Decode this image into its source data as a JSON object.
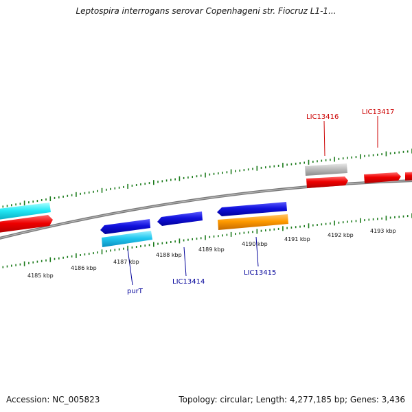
{
  "title": "Leptospira interrogans serovar Copenhageni str. Fiocruz L1-1...",
  "footer": {
    "accession": "Accession: NC_005823",
    "topology": "Topology: circular; Length: 4,277,185 bp; Genes: 3,436"
  },
  "kbp_labels": [
    "4185 kbp",
    "4186 kbp",
    "4187 kbp",
    "4188 kbp",
    "4189 kbp",
    "4190 kbp",
    "4191 kbp",
    "4192 kbp",
    "4193 kbp"
  ],
  "gene_labels": {
    "purT": "purT",
    "LIC13414": "LIC13414",
    "LIC13415": "LIC13415",
    "LIC13416": "LIC13416",
    "LIC13417": "LIC13417"
  },
  "colors": {
    "forward_label": "#cc0000",
    "reverse_label": "#000099",
    "tick": "#1a7a1a",
    "backbone": "#808080"
  }
}
